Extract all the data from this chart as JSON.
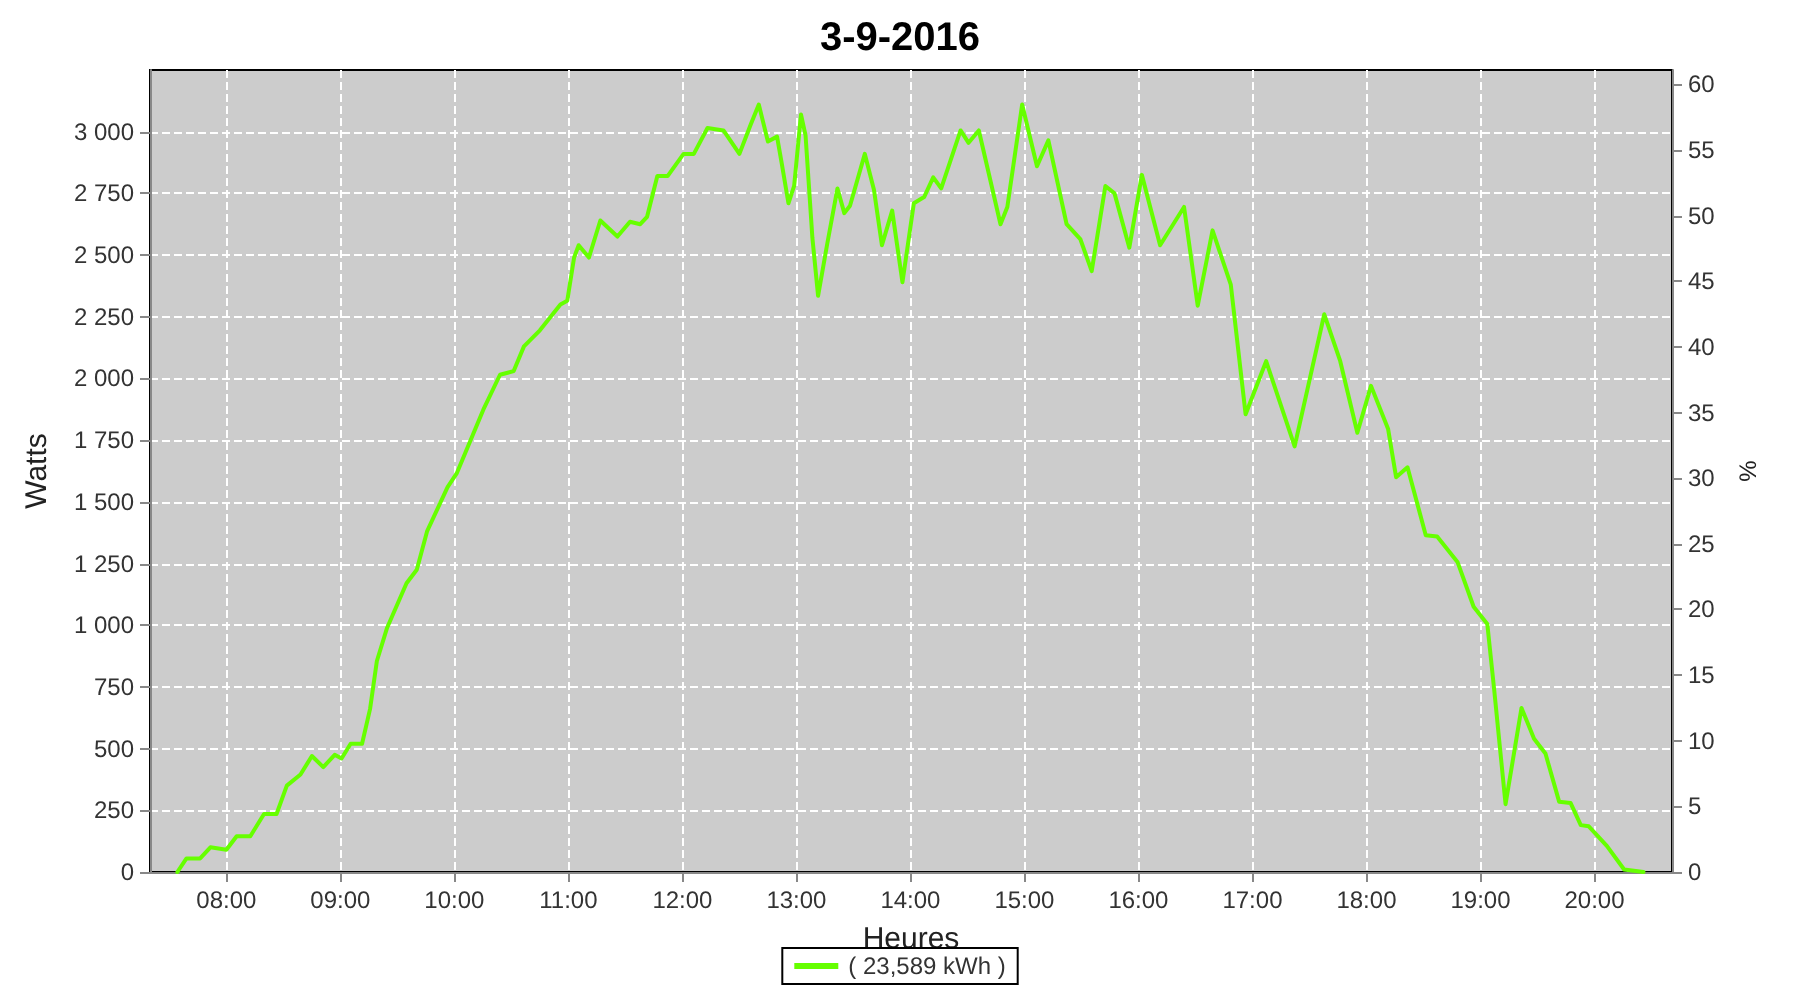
{
  "chart_data": {
    "type": "line",
    "title": "3-9-2016",
    "xlabel": "Heures",
    "ylabel": "Watts",
    "y2label": "%",
    "xlim": [
      7.33,
      20.68
    ],
    "xticks": [
      {
        "value": 8,
        "label": "08:00"
      },
      {
        "value": 9,
        "label": "09:00"
      },
      {
        "value": 10,
        "label": "10:00"
      },
      {
        "value": 11,
        "label": "11:00"
      },
      {
        "value": 12,
        "label": "12:00"
      },
      {
        "value": 13,
        "label": "13:00"
      },
      {
        "value": 14,
        "label": "14:00"
      },
      {
        "value": 15,
        "label": "15:00"
      },
      {
        "value": 16,
        "label": "16:00"
      },
      {
        "value": 17,
        "label": "17:00"
      },
      {
        "value": 18,
        "label": "18:00"
      },
      {
        "value": 19,
        "label": "19:00"
      },
      {
        "value": 20,
        "label": "20:00"
      }
    ],
    "ylim": [
      0,
      3250
    ],
    "yticks": [
      0,
      250,
      500,
      750,
      {
        "value": 1000,
        "label": "1 000"
      },
      {
        "value": 1250,
        "label": "1 250"
      },
      {
        "value": 1500,
        "label": "1 500"
      },
      {
        "value": 1750,
        "label": "1 750"
      },
      {
        "value": 2000,
        "label": "2 000"
      },
      {
        "value": 2250,
        "label": "2 250"
      },
      {
        "value": 2500,
        "label": "2 500"
      },
      {
        "value": 2750,
        "label": "2 750"
      },
      {
        "value": 3000,
        "label": "3 000"
      }
    ],
    "y2lim": [
      0,
      61.1
    ],
    "y2ticks": [
      0,
      5,
      10,
      15,
      20,
      25,
      30,
      35,
      40,
      45,
      50,
      55,
      60
    ],
    "grid": true,
    "legend": "bottom",
    "marker": "none",
    "line_style": "solid",
    "series": [
      {
        "name": "( 23,589 kWh )",
        "color": "#66ff00",
        "x": [
          7.57,
          7.65,
          7.77,
          7.86,
          8.0,
          8.09,
          8.21,
          8.33,
          8.44,
          8.53,
          8.65,
          8.75,
          8.85,
          8.95,
          9.01,
          9.09,
          9.19,
          9.26,
          9.32,
          9.41,
          9.58,
          9.67,
          9.76,
          9.94,
          10.02,
          10.26,
          10.4,
          10.52,
          10.61,
          10.75,
          10.93,
          10.99,
          11.05,
          11.09,
          11.18,
          11.28,
          11.43,
          11.54,
          11.63,
          11.69,
          11.78,
          11.87,
          12.01,
          12.1,
          12.22,
          12.36,
          12.5,
          12.6,
          12.67,
          12.75,
          12.83,
          12.87,
          12.93,
          12.98,
          13.04,
          13.08,
          13.14,
          13.19,
          13.27,
          13.36,
          13.42,
          13.47,
          13.6,
          13.68,
          13.75,
          13.84,
          13.93,
          14.03,
          14.12,
          14.2,
          14.27,
          14.44,
          14.51,
          14.6,
          14.79,
          14.85,
          14.98,
          15.11,
          15.21,
          15.37,
          15.49,
          15.59,
          15.71,
          15.79,
          15.92,
          16.03,
          16.19,
          16.4,
          16.52,
          16.65,
          16.81,
          16.94,
          17.12,
          17.37,
          17.63,
          17.77,
          17.92,
          18.04,
          18.19,
          18.26,
          18.36,
          18.52,
          18.62,
          18.8,
          18.94,
          19.06,
          19.12,
          19.22,
          19.36,
          19.47,
          19.57,
          19.69,
          19.79,
          19.88,
          19.95,
          20.11,
          20.26,
          20.43
        ],
        "values": [
          0,
          55,
          55,
          100,
          90,
          145,
          145,
          235,
          235,
          350,
          395,
          470,
          425,
          475,
          460,
          520,
          520,
          660,
          855,
          990,
          1170,
          1225,
          1380,
          1560,
          1615,
          1880,
          2015,
          2030,
          2130,
          2195,
          2300,
          2315,
          2490,
          2540,
          2490,
          2640,
          2575,
          2635,
          2625,
          2655,
          2820,
          2820,
          2910,
          2910,
          3015,
          3005,
          2910,
          3030,
          3110,
          2960,
          2980,
          2875,
          2710,
          2780,
          3070,
          2985,
          2570,
          2335,
          2545,
          2770,
          2670,
          2700,
          2910,
          2765,
          2540,
          2680,
          2390,
          2710,
          2735,
          2815,
          2770,
          3005,
          2955,
          3005,
          2625,
          2695,
          3110,
          2860,
          2965,
          2625,
          2565,
          2435,
          2780,
          2750,
          2530,
          2825,
          2540,
          2695,
          2295,
          2600,
          2380,
          1855,
          2070,
          1725,
          2260,
          2070,
          1780,
          1970,
          1795,
          1600,
          1640,
          1365,
          1360,
          1255,
          1075,
          1005,
          740,
          275,
          665,
          540,
          480,
          285,
          280,
          190,
          185,
          105,
          10,
          0
        ]
      }
    ]
  }
}
